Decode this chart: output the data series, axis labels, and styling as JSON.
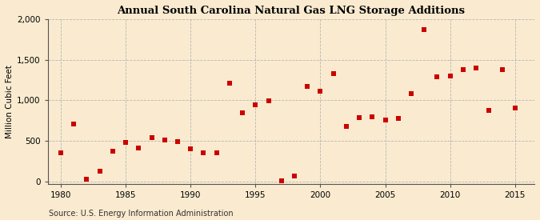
{
  "title": "Annual South Carolina Natural Gas LNG Storage Additions",
  "ylabel": "Million Cubic Feet",
  "source": "Source: U.S. Energy Information Administration",
  "xlim": [
    1979,
    2016.5
  ],
  "ylim": [
    -30,
    2000
  ],
  "yticks": [
    0,
    500,
    1000,
    1500,
    2000
  ],
  "ytick_labels": [
    "0",
    "500",
    "1,000",
    "1,500",
    "2,000"
  ],
  "xticks": [
    1980,
    1985,
    1990,
    1995,
    2000,
    2005,
    2010,
    2015
  ],
  "background_color": "#faebd0",
  "plot_bg_color": "#faebd0",
  "marker_color": "#cc0000",
  "marker_size": 18,
  "grid_color": "#b0b0b0",
  "data": {
    "years": [
      1980,
      1981,
      1982,
      1983,
      1984,
      1985,
      1986,
      1987,
      1988,
      1989,
      1990,
      1991,
      1992,
      1993,
      1994,
      1995,
      1996,
      1997,
      1998,
      1999,
      2000,
      2001,
      2002,
      2003,
      2004,
      2005,
      2006,
      2007,
      2008,
      2009,
      2010,
      2011,
      2012,
      2013,
      2014,
      2015
    ],
    "values": [
      350,
      710,
      30,
      130,
      370,
      480,
      410,
      540,
      510,
      490,
      400,
      350,
      350,
      1210,
      850,
      940,
      990,
      10,
      70,
      1170,
      1110,
      1330,
      680,
      790,
      800,
      760,
      780,
      1080,
      1870,
      1290,
      1300,
      1380,
      1400,
      870,
      1380,
      900
    ]
  }
}
